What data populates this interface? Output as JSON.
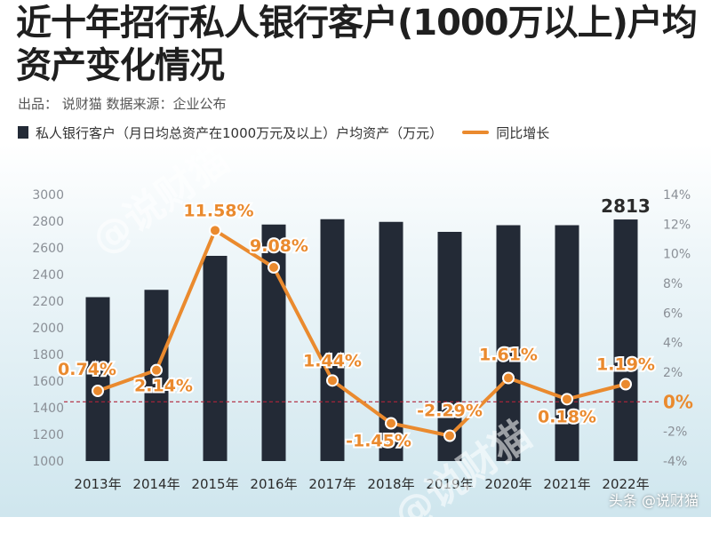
{
  "header": {
    "title": "近十年招行私人银行客户(1000万以上)户均资产变化情况",
    "source": "出品： 说财猫   数据来源：企业公布"
  },
  "watermark": {
    "text": "@说财猫"
  },
  "footer": {
    "credit": "头条 @说财猫"
  },
  "colors": {
    "bar": "#232a36",
    "line": "#ea8a2e",
    "label": "#ea8a2e",
    "zero_line": "#b0243a"
  },
  "chart_data": {
    "type": "bar",
    "categories": [
      "2013年",
      "2014年",
      "2015年",
      "2016年",
      "2017年",
      "2018年",
      "2019年",
      "2020年",
      "2021年",
      "2022年"
    ],
    "series": [
      {
        "name": "私人银行客户（月日均总资产在1000万元及以上）户均资产（万元）",
        "type": "bar",
        "axis": "left",
        "values": [
          2230,
          2285,
          2540,
          2775,
          2815,
          2795,
          2720,
          2770,
          2770,
          2813
        ]
      },
      {
        "name": "同比增长",
        "type": "line",
        "axis": "right",
        "values": [
          0.74,
          2.14,
          11.58,
          9.08,
          1.44,
          -1.45,
          -2.29,
          1.61,
          0.18,
          1.19
        ],
        "labels": [
          "0.74%",
          "2.14%",
          "11.58%",
          "9.08%",
          "1.44%",
          "-1.45%",
          "-2.29%",
          "1.61%",
          "0.18%",
          "1.19%"
        ]
      }
    ],
    "bar_value_label": {
      "index": 9,
      "text": "2813"
    },
    "y_left": {
      "min": 1000,
      "max": 3000,
      "ticks": [
        "1000",
        "1200",
        "1400",
        "1600",
        "1800",
        "2000",
        "2200",
        "2400",
        "2600",
        "2800",
        "3000"
      ]
    },
    "y_right": {
      "min": -4,
      "max": 14,
      "ticks": [
        "-4%",
        "-2%",
        "0%",
        "2%",
        "4%",
        "6%",
        "8%",
        "10%",
        "12%",
        "14%"
      ],
      "highlight_tick": "0%"
    },
    "grid": false,
    "legend_position": "top-left"
  }
}
